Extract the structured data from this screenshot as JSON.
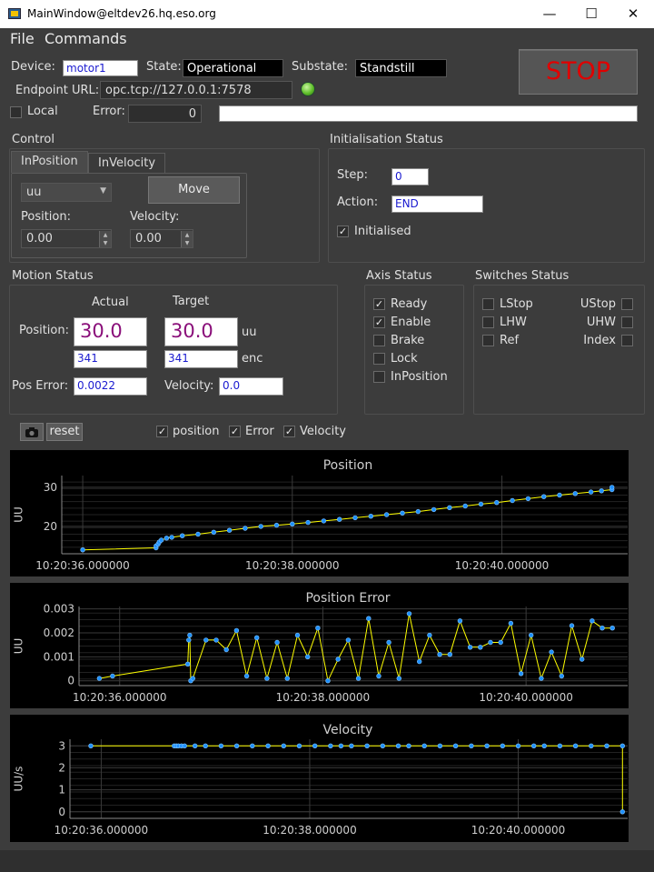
{
  "window": {
    "title": "MainWindow@eltdev26.hq.eso.org",
    "minimize": "—",
    "maximize": "☐",
    "close": "✕"
  },
  "menu": {
    "file": "File",
    "commands": "Commands"
  },
  "header": {
    "device_label": "Device:",
    "device": "motor1",
    "state_label": "State:",
    "state": "Operational",
    "substate_label": "Substate:",
    "substate": "Standstill",
    "endpoint_label": "Endpoint URL:",
    "endpoint": "opc.tcp://127.0.0.1:7578",
    "local_label": "Local",
    "local_checked": false,
    "error_label": "Error:",
    "error_code": "0",
    "error_text": "",
    "stop_label": "STOP"
  },
  "control": {
    "title": "Control",
    "tabs": [
      "InPosition",
      "InVelocity"
    ],
    "unit_select": "uu",
    "move_label": "Move",
    "position_label": "Position:",
    "position_value": "0.00",
    "velocity_label": "Velocity:",
    "velocity_value": "0.00"
  },
  "init_status": {
    "title": "Initialisation Status",
    "step_label": "Step:",
    "step_value": "0",
    "action_label": "Action:",
    "action_value": "END",
    "initialised_label": "Initialised",
    "initialised_checked": true
  },
  "motion_status": {
    "title": "Motion Status",
    "actual_header": "Actual",
    "target_header": "Target",
    "position_label": "Position:",
    "actual_position": "30.0",
    "target_position": "30.0",
    "position_unit": "uu",
    "actual_enc": "341",
    "target_enc": "341",
    "enc_unit": "enc",
    "pos_error_label": "Pos Error:",
    "pos_error": "0.0022",
    "velocity_label": "Velocity:",
    "velocity": "0.0"
  },
  "axis_status": {
    "title": "Axis Status",
    "items": [
      {
        "label": "Ready",
        "checked": true
      },
      {
        "label": "Enable",
        "checked": true
      },
      {
        "label": "Brake",
        "checked": false
      },
      {
        "label": "Lock",
        "checked": false
      },
      {
        "label": "InPosition",
        "checked": false
      }
    ]
  },
  "switches_status": {
    "title": "Switches Status",
    "left": [
      {
        "label": "LStop"
      },
      {
        "label": "LHW"
      },
      {
        "label": "Ref"
      }
    ],
    "right": [
      {
        "label": "UStop"
      },
      {
        "label": "UHW"
      },
      {
        "label": "Index"
      }
    ]
  },
  "plot_toolbar": {
    "reset_label": "reset",
    "toggles": [
      {
        "label": "position",
        "checked": true
      },
      {
        "label": "Error",
        "checked": true
      },
      {
        "label": "Velocity",
        "checked": true
      }
    ]
  },
  "colors": {
    "series_line": "#ffff00",
    "series_marker": "#1e90ff",
    "grid": "#3a3a3a",
    "stop_text": "#e00000",
    "value_purple": "#8a0f7a"
  },
  "chart_data": [
    {
      "type": "line",
      "title": "Position",
      "ylabel": "UU",
      "xlabel": "",
      "x_ticks": [
        "10:20:36.000000",
        "10:20:38.000000",
        "10:20:40.000000"
      ],
      "x_tick_values": [
        36.0,
        38.0,
        40.0
      ],
      "y_ticks": [
        "20",
        "30"
      ],
      "y_tick_values": [
        20,
        30
      ],
      "xlim": [
        35.8,
        41.2
      ],
      "ylim": [
        13,
        33
      ],
      "series": [
        {
          "x": [
            36.0,
            36.7,
            36.7,
            36.72,
            36.73,
            36.75,
            36.8,
            36.85,
            36.95,
            37.1,
            37.25,
            37.4,
            37.55,
            37.7,
            37.85,
            38.0,
            38.15,
            38.3,
            38.45,
            38.6,
            38.75,
            38.9,
            39.05,
            39.2,
            39.35,
            39.5,
            39.65,
            39.8,
            39.95,
            40.1,
            40.25,
            40.4,
            40.55,
            40.7,
            40.85,
            40.95,
            41.05,
            41.05
          ],
          "y": [
            14.0,
            14.5,
            15.0,
            15.5,
            16.0,
            16.5,
            17.0,
            17.2,
            17.6,
            18.0,
            18.5,
            19.0,
            19.5,
            20.0,
            20.3,
            20.6,
            21.0,
            21.4,
            21.8,
            22.2,
            22.6,
            23.0,
            23.4,
            23.8,
            24.3,
            24.8,
            25.2,
            25.7,
            26.1,
            26.6,
            27.1,
            27.6,
            28.0,
            28.4,
            28.8,
            29.1,
            29.4,
            30.0
          ]
        }
      ]
    },
    {
      "type": "line",
      "title": "Position Error",
      "ylabel": "UU",
      "xlabel": "",
      "x_ticks": [
        "10:20:36.000000",
        "10:20:38.000000",
        "10:20:40.000000"
      ],
      "x_tick_values": [
        36.0,
        38.0,
        40.0
      ],
      "y_ticks": [
        "0",
        "0.001",
        "0.002",
        "0.003"
      ],
      "y_tick_values": [
        0,
        0.001,
        0.002,
        0.003
      ],
      "xlim": [
        35.6,
        41.0
      ],
      "ylim": [
        -0.0002,
        0.0031
      ],
      "series": [
        {
          "x": [
            35.8,
            35.93,
            36.67,
            36.68,
            36.69,
            36.7,
            36.72,
            36.85,
            36.95,
            37.05,
            37.15,
            37.25,
            37.35,
            37.45,
            37.55,
            37.65,
            37.75,
            37.85,
            37.95,
            38.05,
            38.15,
            38.25,
            38.35,
            38.45,
            38.55,
            38.65,
            38.75,
            38.85,
            38.95,
            39.05,
            39.15,
            39.25,
            39.35,
            39.45,
            39.55,
            39.65,
            39.75,
            39.85,
            39.95,
            40.05,
            40.15,
            40.25,
            40.35,
            40.45,
            40.55,
            40.65,
            40.75,
            40.85
          ],
          "y": [
            0.0001,
            0.0002,
            0.0007,
            0.0017,
            0.0019,
            0.0,
            0.0001,
            0.0017,
            0.0017,
            0.0013,
            0.0021,
            0.0002,
            0.0018,
            0.0001,
            0.0016,
            0.0001,
            0.0019,
            0.001,
            0.0022,
            0.0,
            0.0009,
            0.0017,
            0.0001,
            0.0026,
            0.0002,
            0.0016,
            0.0001,
            0.0028,
            0.0008,
            0.0019,
            0.0011,
            0.0011,
            0.0025,
            0.0014,
            0.0014,
            0.0016,
            0.0016,
            0.0024,
            0.0003,
            0.0019,
            0.0001,
            0.0012,
            0.0002,
            0.0023,
            0.0009,
            0.0025,
            0.0022,
            0.0022
          ]
        }
      ]
    },
    {
      "type": "line",
      "title": "Velocity",
      "ylabel": "UU/s",
      "xlabel": "",
      "x_ticks": [
        "10:20:36.000000",
        "10:20:38.000000",
        "10:20:40.000000"
      ],
      "x_tick_values": [
        36.0,
        38.0,
        40.0
      ],
      "y_ticks": [
        "0",
        "1",
        "2",
        "3"
      ],
      "y_tick_values": [
        0,
        1,
        2,
        3
      ],
      "xlim": [
        35.7,
        41.05
      ],
      "ylim": [
        -0.3,
        3.3
      ],
      "series": [
        {
          "x": [
            35.9,
            36.7,
            36.72,
            36.74,
            36.77,
            36.8,
            36.9,
            37.0,
            37.15,
            37.3,
            37.45,
            37.6,
            37.75,
            37.9,
            38.05,
            38.2,
            38.3,
            38.4,
            38.55,
            38.7,
            38.85,
            38.95,
            39.1,
            39.25,
            39.4,
            39.55,
            39.7,
            39.85,
            40.0,
            40.15,
            40.25,
            40.4,
            40.55,
            40.7,
            40.85,
            41.0,
            41.0
          ],
          "y": [
            3,
            3,
            3,
            3,
            3,
            3,
            3,
            3,
            3,
            3,
            3,
            3,
            3,
            3,
            3,
            3,
            3,
            3,
            3,
            3,
            3,
            3,
            3,
            3,
            3,
            3,
            3,
            3,
            3,
            3,
            3,
            3,
            3,
            3,
            3,
            3,
            0
          ]
        }
      ]
    }
  ]
}
